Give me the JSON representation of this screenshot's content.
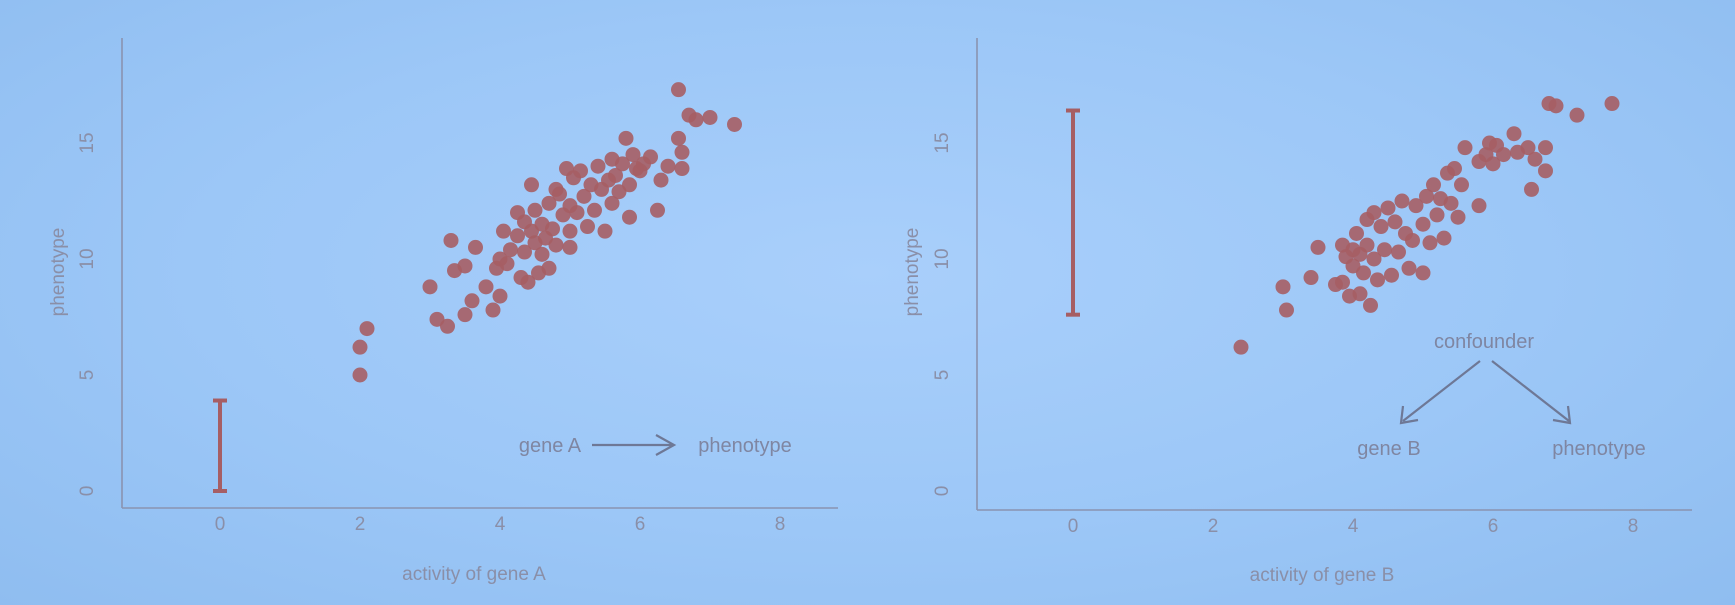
{
  "chart_data": [
    {
      "type": "scatter",
      "xlabel": "activity of gene A",
      "ylabel": "phenotype",
      "xlim": [
        -1.4,
        8.8
      ],
      "ylim": [
        -0.5,
        19.5
      ],
      "xticks": [
        0,
        2,
        4,
        6,
        8
      ],
      "yticks": [
        0,
        5,
        10,
        15
      ],
      "x_tick_labels": [
        "0",
        "2",
        "4",
        "6",
        "8"
      ],
      "y_tick_labels": [
        "0",
        "5",
        "10",
        "15"
      ],
      "grid": false,
      "error_bar": {
        "x": 0,
        "low": 0,
        "high": 3.9
      },
      "annotation": {
        "from": "gene A",
        "to": "phenotype"
      },
      "points": [
        [
          2.0,
          5.0
        ],
        [
          2.0,
          6.2
        ],
        [
          2.1,
          7.0
        ],
        [
          3.0,
          8.8
        ],
        [
          3.1,
          7.4
        ],
        [
          3.25,
          7.1
        ],
        [
          3.35,
          9.5
        ],
        [
          3.3,
          10.8
        ],
        [
          3.5,
          7.6
        ],
        [
          3.5,
          9.7
        ],
        [
          3.6,
          8.2
        ],
        [
          3.65,
          10.5
        ],
        [
          3.8,
          8.8
        ],
        [
          3.9,
          7.8
        ],
        [
          3.95,
          9.6
        ],
        [
          4.0,
          10.0
        ],
        [
          4.0,
          8.4
        ],
        [
          4.05,
          11.2
        ],
        [
          4.1,
          9.8
        ],
        [
          4.15,
          10.4
        ],
        [
          4.25,
          11.0
        ],
        [
          4.25,
          12.0
        ],
        [
          4.3,
          9.2
        ],
        [
          4.35,
          10.3
        ],
        [
          4.35,
          11.6
        ],
        [
          4.4,
          9.0
        ],
        [
          4.45,
          11.2
        ],
        [
          4.45,
          13.2
        ],
        [
          4.5,
          10.7
        ],
        [
          4.5,
          12.1
        ],
        [
          4.55,
          9.4
        ],
        [
          4.6,
          10.2
        ],
        [
          4.6,
          11.5
        ],
        [
          4.65,
          10.9
        ],
        [
          4.7,
          12.4
        ],
        [
          4.7,
          9.6
        ],
        [
          4.75,
          11.3
        ],
        [
          4.8,
          13.0
        ],
        [
          4.8,
          10.6
        ],
        [
          4.85,
          12.8
        ],
        [
          4.9,
          11.9
        ],
        [
          4.95,
          13.9
        ],
        [
          5.0,
          10.5
        ],
        [
          5.0,
          12.3
        ],
        [
          5.0,
          11.2
        ],
        [
          5.05,
          13.5
        ],
        [
          5.1,
          12.0
        ],
        [
          5.15,
          13.8
        ],
        [
          5.2,
          12.7
        ],
        [
          5.25,
          11.4
        ],
        [
          5.3,
          13.2
        ],
        [
          5.35,
          12.1
        ],
        [
          5.4,
          14.0
        ],
        [
          5.45,
          13.0
        ],
        [
          5.5,
          11.2
        ],
        [
          5.55,
          13.4
        ],
        [
          5.6,
          12.4
        ],
        [
          5.6,
          14.3
        ],
        [
          5.65,
          13.6
        ],
        [
          5.7,
          12.9
        ],
        [
          5.75,
          14.1
        ],
        [
          5.8,
          15.2
        ],
        [
          5.85,
          13.2
        ],
        [
          5.85,
          11.8
        ],
        [
          5.9,
          14.5
        ],
        [
          5.95,
          13.9
        ],
        [
          6.0,
          13.8
        ],
        [
          6.05,
          14.1
        ],
        [
          6.15,
          14.4
        ],
        [
          6.25,
          12.1
        ],
        [
          6.3,
          13.4
        ],
        [
          6.4,
          14.0
        ],
        [
          6.55,
          15.2
        ],
        [
          6.6,
          14.6
        ],
        [
          6.6,
          13.9
        ],
        [
          6.7,
          16.2
        ],
        [
          6.8,
          16.0
        ],
        [
          6.55,
          17.3
        ],
        [
          7.0,
          16.1
        ],
        [
          7.35,
          15.8
        ]
      ]
    },
    {
      "type": "scatter",
      "xlabel": "activity of gene B",
      "ylabel": "phenotype",
      "xlim": [
        -1.4,
        8.8
      ],
      "ylim": [
        -0.5,
        19.5
      ],
      "xticks": [
        0,
        2,
        4,
        6,
        8
      ],
      "yticks": [
        0,
        5,
        10,
        15
      ],
      "x_tick_labels": [
        "0",
        "2",
        "4",
        "6",
        "8"
      ],
      "y_tick_labels": [
        "0",
        "5",
        "10",
        "15"
      ],
      "grid": false,
      "error_bar": {
        "x": 0,
        "low": 7.6,
        "high": 16.4
      },
      "annotation": {
        "top": "confounder",
        "left": "gene B",
        "right": "phenotype"
      },
      "points": [
        [
          2.4,
          6.2
        ],
        [
          3.0,
          8.8
        ],
        [
          3.05,
          7.8
        ],
        [
          3.4,
          9.2
        ],
        [
          3.5,
          10.5
        ],
        [
          3.75,
          8.9
        ],
        [
          3.85,
          10.6
        ],
        [
          3.85,
          9.0
        ],
        [
          3.9,
          10.1
        ],
        [
          3.95,
          8.4
        ],
        [
          4.0,
          10.4
        ],
        [
          4.0,
          9.7
        ],
        [
          4.05,
          11.1
        ],
        [
          4.1,
          8.5
        ],
        [
          4.1,
          10.2
        ],
        [
          4.15,
          9.4
        ],
        [
          4.2,
          11.7
        ],
        [
          4.2,
          10.6
        ],
        [
          4.25,
          8.0
        ],
        [
          4.3,
          10.0
        ],
        [
          4.3,
          12.0
        ],
        [
          4.35,
          9.1
        ],
        [
          4.4,
          11.4
        ],
        [
          4.45,
          10.4
        ],
        [
          4.5,
          12.2
        ],
        [
          4.55,
          9.3
        ],
        [
          4.6,
          11.6
        ],
        [
          4.65,
          10.3
        ],
        [
          4.7,
          12.5
        ],
        [
          4.75,
          11.1
        ],
        [
          4.8,
          9.6
        ],
        [
          4.85,
          10.8
        ],
        [
          4.9,
          12.3
        ],
        [
          5.0,
          11.5
        ],
        [
          5.0,
          9.4
        ],
        [
          5.05,
          12.7
        ],
        [
          5.1,
          10.7
        ],
        [
          5.15,
          13.2
        ],
        [
          5.2,
          11.9
        ],
        [
          5.25,
          12.6
        ],
        [
          5.3,
          10.9
        ],
        [
          5.35,
          13.7
        ],
        [
          5.4,
          12.4
        ],
        [
          5.45,
          13.9
        ],
        [
          5.5,
          11.8
        ],
        [
          5.55,
          13.2
        ],
        [
          5.6,
          14.8
        ],
        [
          5.8,
          14.2
        ],
        [
          5.8,
          12.3
        ],
        [
          5.9,
          14.5
        ],
        [
          5.95,
          15.0
        ],
        [
          6.0,
          14.1
        ],
        [
          6.05,
          14.9
        ],
        [
          6.15,
          14.5
        ],
        [
          6.3,
          15.4
        ],
        [
          6.35,
          14.6
        ],
        [
          6.5,
          14.8
        ],
        [
          6.6,
          14.3
        ],
        [
          6.55,
          13.0
        ],
        [
          6.75,
          13.8
        ],
        [
          6.75,
          14.8
        ],
        [
          6.8,
          16.7
        ],
        [
          6.9,
          16.6
        ],
        [
          7.2,
          16.2
        ],
        [
          7.7,
          16.7
        ]
      ]
    }
  ]
}
